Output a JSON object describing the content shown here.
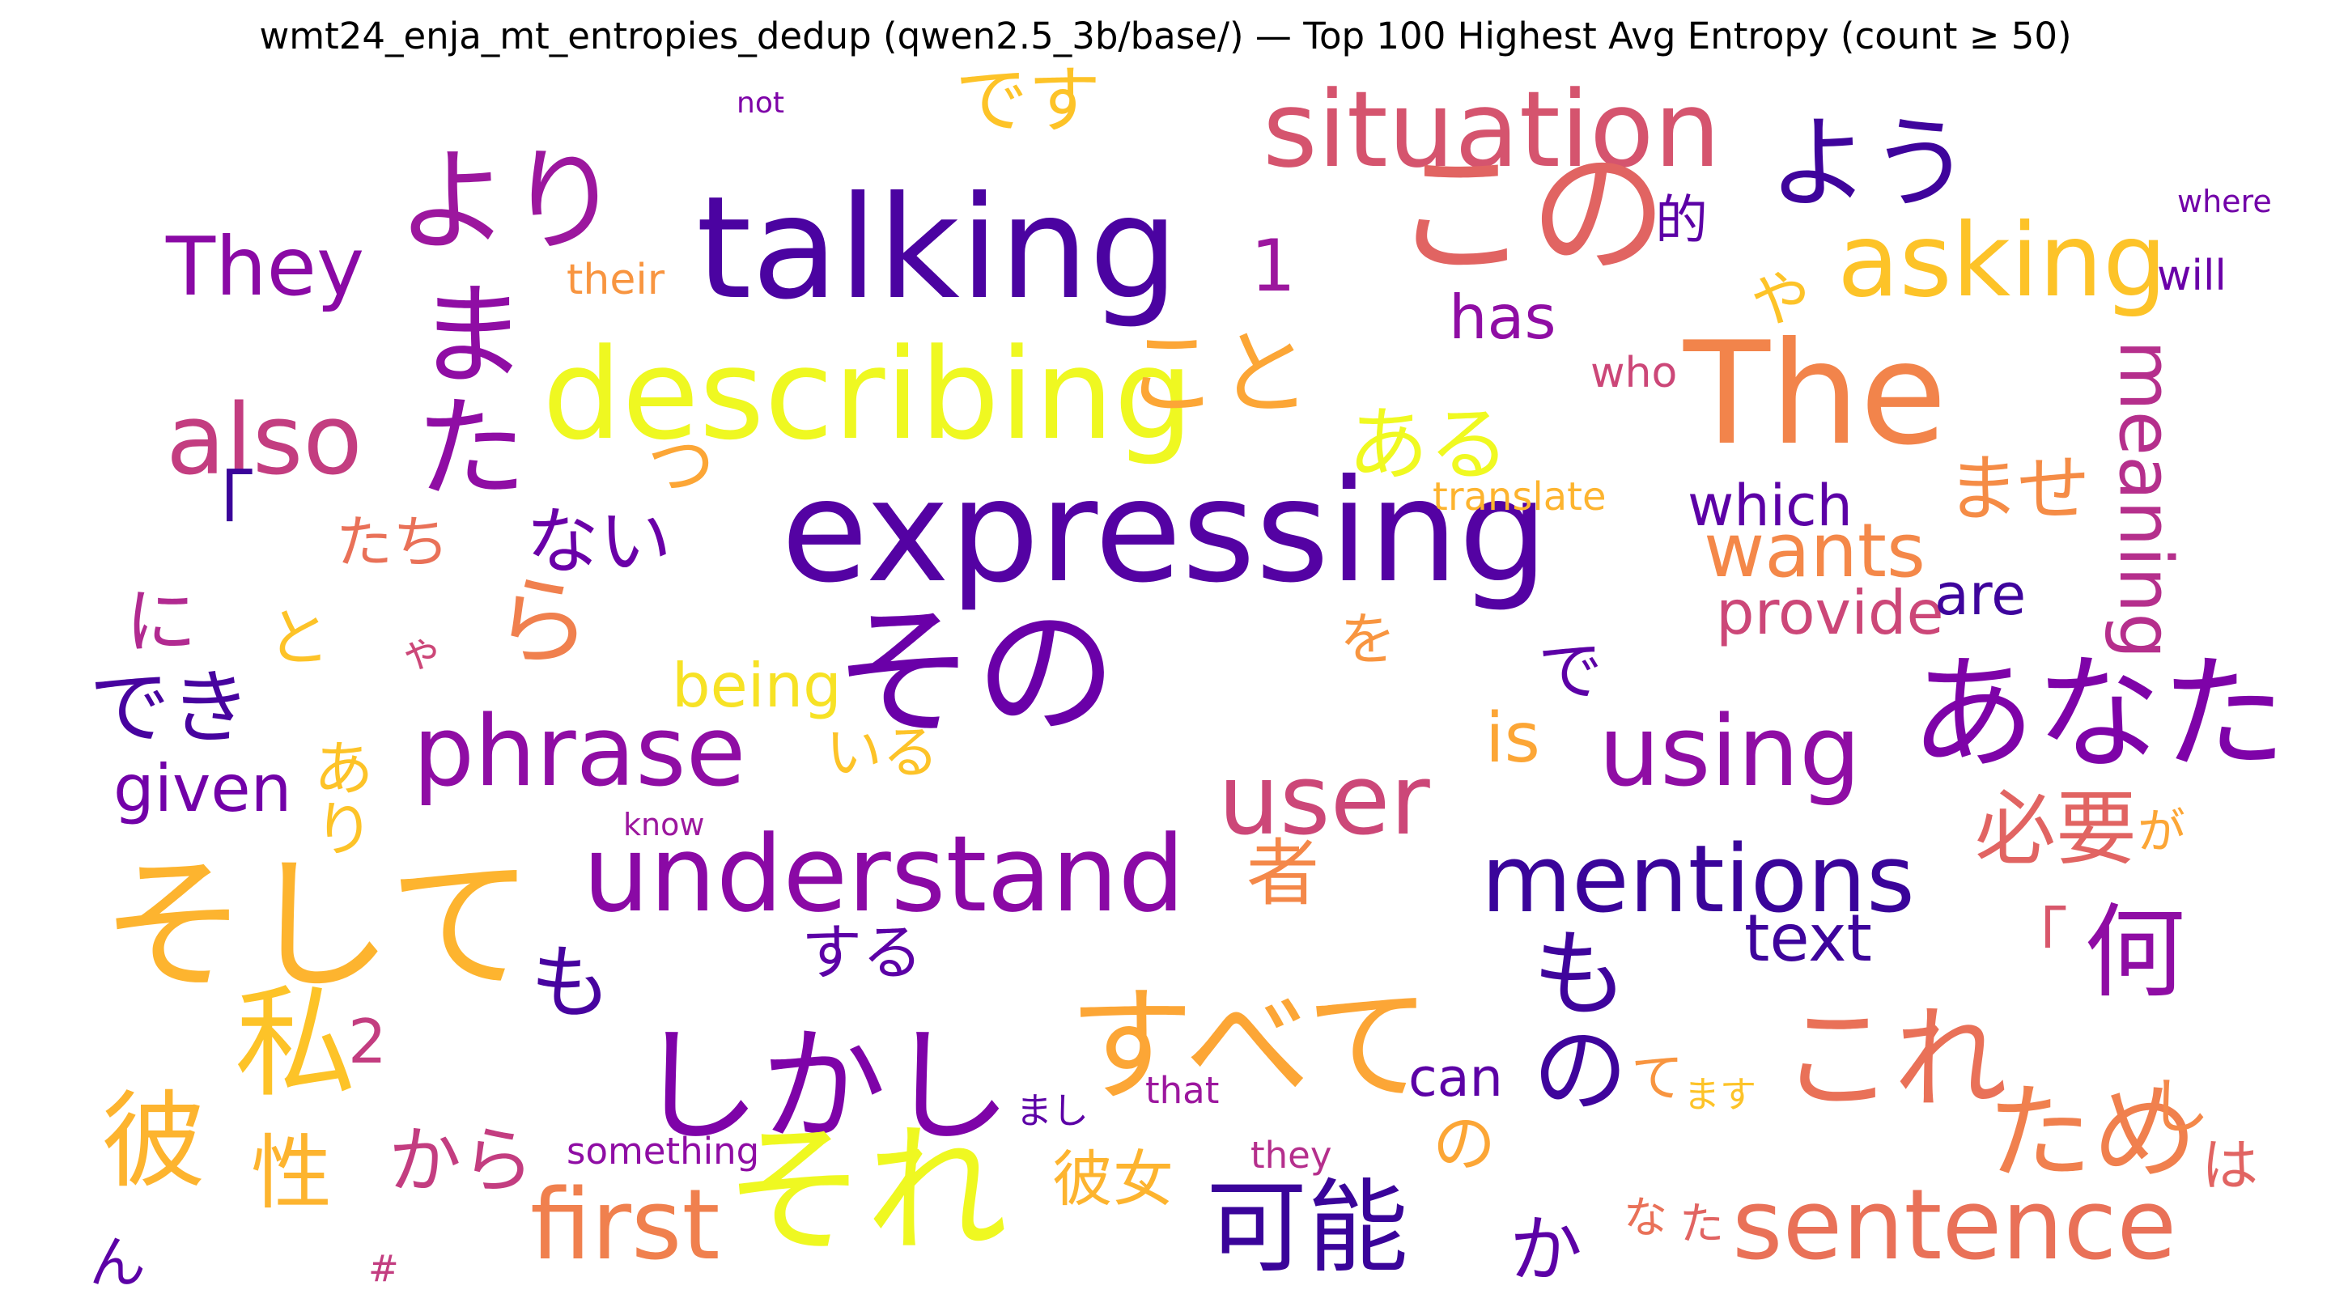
{
  "title": "wmt24_enja_mt_entropies_dedup (qwen2.5_3b/base/) — Top 100 Highest Avg Entropy (count ≥ 50)",
  "colormap": "plasma",
  "words": [
    {
      "text": "not",
      "color": "#7e03a8"
    },
    {
      "text": "です",
      "color": "#fdc328"
    },
    {
      "text": "situation",
      "color": "#d5546e"
    },
    {
      "text": "この",
      "color": "#e16462"
    },
    {
      "text": "より",
      "color": "#9c179e"
    },
    {
      "text": "talking",
      "color": "#4b03a1"
    },
    {
      "text": "よう",
      "color": "#3f049c"
    },
    {
      "text": "where",
      "color": "#7201a8"
    },
    {
      "text": "的",
      "color": "#5c01a6"
    },
    {
      "text": "They",
      "color": "#8a09a5"
    },
    {
      "text": "1",
      "color": "#9c179e"
    },
    {
      "text": "their",
      "color": "#f89540"
    },
    {
      "text": "asking",
      "color": "#fdc328"
    },
    {
      "text": "will",
      "color": "#6a00a8"
    },
    {
      "text": "また",
      "color": "#8f0da4"
    },
    {
      "text": "has",
      "color": "#8f0da4"
    },
    {
      "text": "や",
      "color": "#fdc328"
    },
    {
      "text": "describing",
      "color": "#eff821"
    },
    {
      "text": "こと",
      "color": "#fca636"
    },
    {
      "text": "who",
      "color": "#cc4778"
    },
    {
      "text": "The",
      "color": "#f2844b"
    },
    {
      "text": "also",
      "color": "#c33d80"
    },
    {
      "text": "ある",
      "color": "#f0f921"
    },
    {
      "text": "ませ",
      "color": "#f58c46"
    },
    {
      "text": "meaning",
      "color": "#b52f8c"
    },
    {
      "text": "「",
      "color": "#3b049a"
    },
    {
      "text": "つ",
      "color": "#fca636"
    },
    {
      "text": "expressing",
      "color": "#5402a3"
    },
    {
      "text": "translate",
      "color": "#fdb42f"
    },
    {
      "text": "which",
      "color": "#5c01a6"
    },
    {
      "text": "たち",
      "color": "#e97158"
    },
    {
      "text": "ない",
      "color": "#6a00a8"
    },
    {
      "text": "wants",
      "color": "#f48849"
    },
    {
      "text": "ら",
      "color": "#f0804e"
    },
    {
      "text": "provide",
      "color": "#cc4778"
    },
    {
      "text": "are",
      "color": "#3e049c"
    },
    {
      "text": "に",
      "color": "#b12a90"
    },
    {
      "text": "と",
      "color": "#fdc328"
    },
    {
      "text": "ゃ",
      "color": "#cc4778"
    },
    {
      "text": "を",
      "color": "#f89540"
    },
    {
      "text": "その",
      "color": "#6a00a8"
    },
    {
      "text": "being",
      "color": "#f7e225"
    },
    {
      "text": "で",
      "color": "#5c01a6"
    },
    {
      "text": "でき",
      "color": "#47039f"
    },
    {
      "text": "あなた",
      "color": "#7e03a8"
    },
    {
      "text": "phrase",
      "color": "#8f0da4"
    },
    {
      "text": "is",
      "color": "#fca636"
    },
    {
      "text": "いる",
      "color": "#fdc328"
    },
    {
      "text": "using",
      "color": "#8f0da4"
    },
    {
      "text": "given",
      "color": "#7201a8"
    },
    {
      "text": "あり",
      "color": "#fdc328"
    },
    {
      "text": "user",
      "color": "#cc4778"
    },
    {
      "text": "know",
      "color": "#9c179e"
    },
    {
      "text": "understand",
      "color": "#8a09a5"
    },
    {
      "text": "mentions",
      "color": "#3a049a"
    },
    {
      "text": "必要",
      "color": "#e16462"
    },
    {
      "text": "が",
      "color": "#fca636"
    },
    {
      "text": "者",
      "color": "#f48849"
    },
    {
      "text": "そして",
      "color": "#fdb42f"
    },
    {
      "text": "text",
      "color": "#3e049c"
    },
    {
      "text": "「",
      "color": "#d8576b"
    },
    {
      "text": "何",
      "color": "#8f0da4"
    },
    {
      "text": "も",
      "color": "#47039f"
    },
    {
      "text": "する",
      "color": "#5c01a6"
    },
    {
      "text": "もの",
      "color": "#3f049c"
    },
    {
      "text": "私",
      "color": "#fdc328"
    },
    {
      "text": "2",
      "color": "#c33d80"
    },
    {
      "text": "すべて",
      "color": "#fca636"
    },
    {
      "text": "これ",
      "color": "#e97158"
    },
    {
      "text": "しかし",
      "color": "#7e03a8"
    },
    {
      "text": "can",
      "color": "#5c01a6"
    },
    {
      "text": "て",
      "color": "#f89540"
    },
    {
      "text": "彼",
      "color": "#fdb42f"
    },
    {
      "text": "まし",
      "color": "#5c01a6"
    },
    {
      "text": "that",
      "color": "#9c179e"
    },
    {
      "text": "ます",
      "color": "#fdc328"
    },
    {
      "text": "ため",
      "color": "#f0804e"
    },
    {
      "text": "し",
      "color": "#f48849"
    },
    {
      "text": "性",
      "color": "#fdb42f"
    },
    {
      "text": "から",
      "color": "#c33d80"
    },
    {
      "text": "それ",
      "color": "#eff821"
    },
    {
      "text": "something",
      "color": "#8f0da4"
    },
    {
      "text": "の",
      "color": "#fca636"
    },
    {
      "text": "彼女",
      "color": "#fdb42f"
    },
    {
      "text": "、",
      "color": "#fdb42f"
    },
    {
      "text": "they",
      "color": "#b52f8c"
    },
    {
      "text": "は",
      "color": "#e16462"
    },
    {
      "text": "first",
      "color": "#f0804e"
    },
    {
      "text": "可能",
      "color": "#3a049a"
    },
    {
      "text": "sentence",
      "color": "#e97158"
    },
    {
      "text": "な",
      "color": "#e97158"
    },
    {
      "text": "た",
      "color": "#e16462"
    },
    {
      "text": "か",
      "color": "#5c01a6"
    },
    {
      "text": "ん",
      "color": "#5c01a6"
    },
    {
      "text": "#",
      "color": "#c33d80"
    }
  ]
}
